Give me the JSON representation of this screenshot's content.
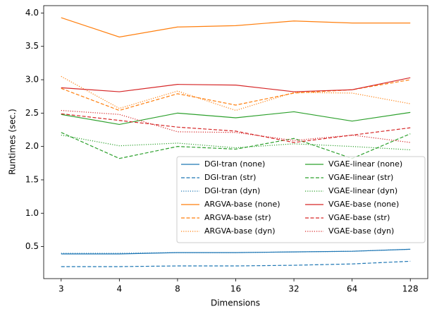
{
  "chart_data": {
    "type": "line",
    "x_label": "Dimensions",
    "y_label": "Runtimes (sec.)",
    "categories": [
      "3",
      "4",
      "8",
      "16",
      "32",
      "64",
      "128"
    ],
    "ylim": [
      0.02,
      4.11
    ],
    "yticks": [
      0.5,
      {
        "value": 1.0,
        "label": "1.0"
      },
      1.5,
      {
        "value": 2.0,
        "label": "2.0"
      },
      2.5,
      {
        "value": 3.0,
        "label": "3.0"
      },
      3.5,
      {
        "value": 4.0,
        "label": "4.0"
      }
    ],
    "legend": "lower right",
    "legend_columns": 2,
    "series": [
      {
        "name": "DGI-tran (none)",
        "color": "#1f77b4",
        "dash": "solid",
        "values": [
          0.39,
          0.39,
          0.41,
          0.41,
          0.42,
          0.43,
          0.46
        ]
      },
      {
        "name": "DGI-tran (str)",
        "color": "#1f77b4",
        "dash": "dashed",
        "values": [
          0.2,
          0.2,
          0.21,
          0.21,
          0.22,
          0.24,
          0.28
        ]
      },
      {
        "name": "DGI-tran (dyn)",
        "color": "#1f77b4",
        "dash": "dotted",
        "values": [
          0.4,
          0.4,
          0.41,
          0.41,
          0.42,
          0.43,
          0.46
        ]
      },
      {
        "name": "ARGVA-base (none)",
        "color": "#ff7f0e",
        "dash": "solid",
        "values": [
          3.93,
          3.64,
          3.79,
          3.81,
          3.88,
          3.85,
          3.85
        ]
      },
      {
        "name": "ARGVA-base (str)",
        "color": "#ff7f0e",
        "dash": "dashed",
        "values": [
          2.87,
          2.54,
          2.79,
          2.62,
          2.8,
          2.85,
          3.0
        ]
      },
      {
        "name": "ARGVA-base (dyn)",
        "color": "#ff7f0e",
        "dash": "dotted",
        "values": [
          3.05,
          2.57,
          2.83,
          2.54,
          2.81,
          2.8,
          2.64
        ]
      },
      {
        "name": "VGAE-linear (none)",
        "color": "#2ca02c",
        "dash": "solid",
        "values": [
          2.48,
          2.33,
          2.5,
          2.43,
          2.52,
          2.38,
          2.51
        ]
      },
      {
        "name": "VGAE-linear (str)",
        "color": "#2ca02c",
        "dash": "dashed",
        "values": [
          2.21,
          1.82,
          2.0,
          1.96,
          2.12,
          1.82,
          2.19
        ]
      },
      {
        "name": "VGAE-linear (dyn)",
        "color": "#2ca02c",
        "dash": "dotted",
        "values": [
          2.17,
          2.01,
          2.05,
          1.98,
          2.04,
          2.0,
          1.95
        ]
      },
      {
        "name": "VGAE-base (none)",
        "color": "#d62728",
        "dash": "solid",
        "values": [
          2.88,
          2.82,
          2.93,
          2.92,
          2.82,
          2.85,
          3.03
        ]
      },
      {
        "name": "VGAE-base (str)",
        "color": "#d62728",
        "dash": "dashed",
        "values": [
          2.49,
          2.39,
          2.29,
          2.23,
          2.06,
          2.17,
          2.28
        ]
      },
      {
        "name": "VGAE-base (dyn)",
        "color": "#d62728",
        "dash": "dotted",
        "values": [
          2.54,
          2.48,
          2.22,
          2.21,
          2.09,
          2.17,
          2.06
        ]
      }
    ]
  }
}
